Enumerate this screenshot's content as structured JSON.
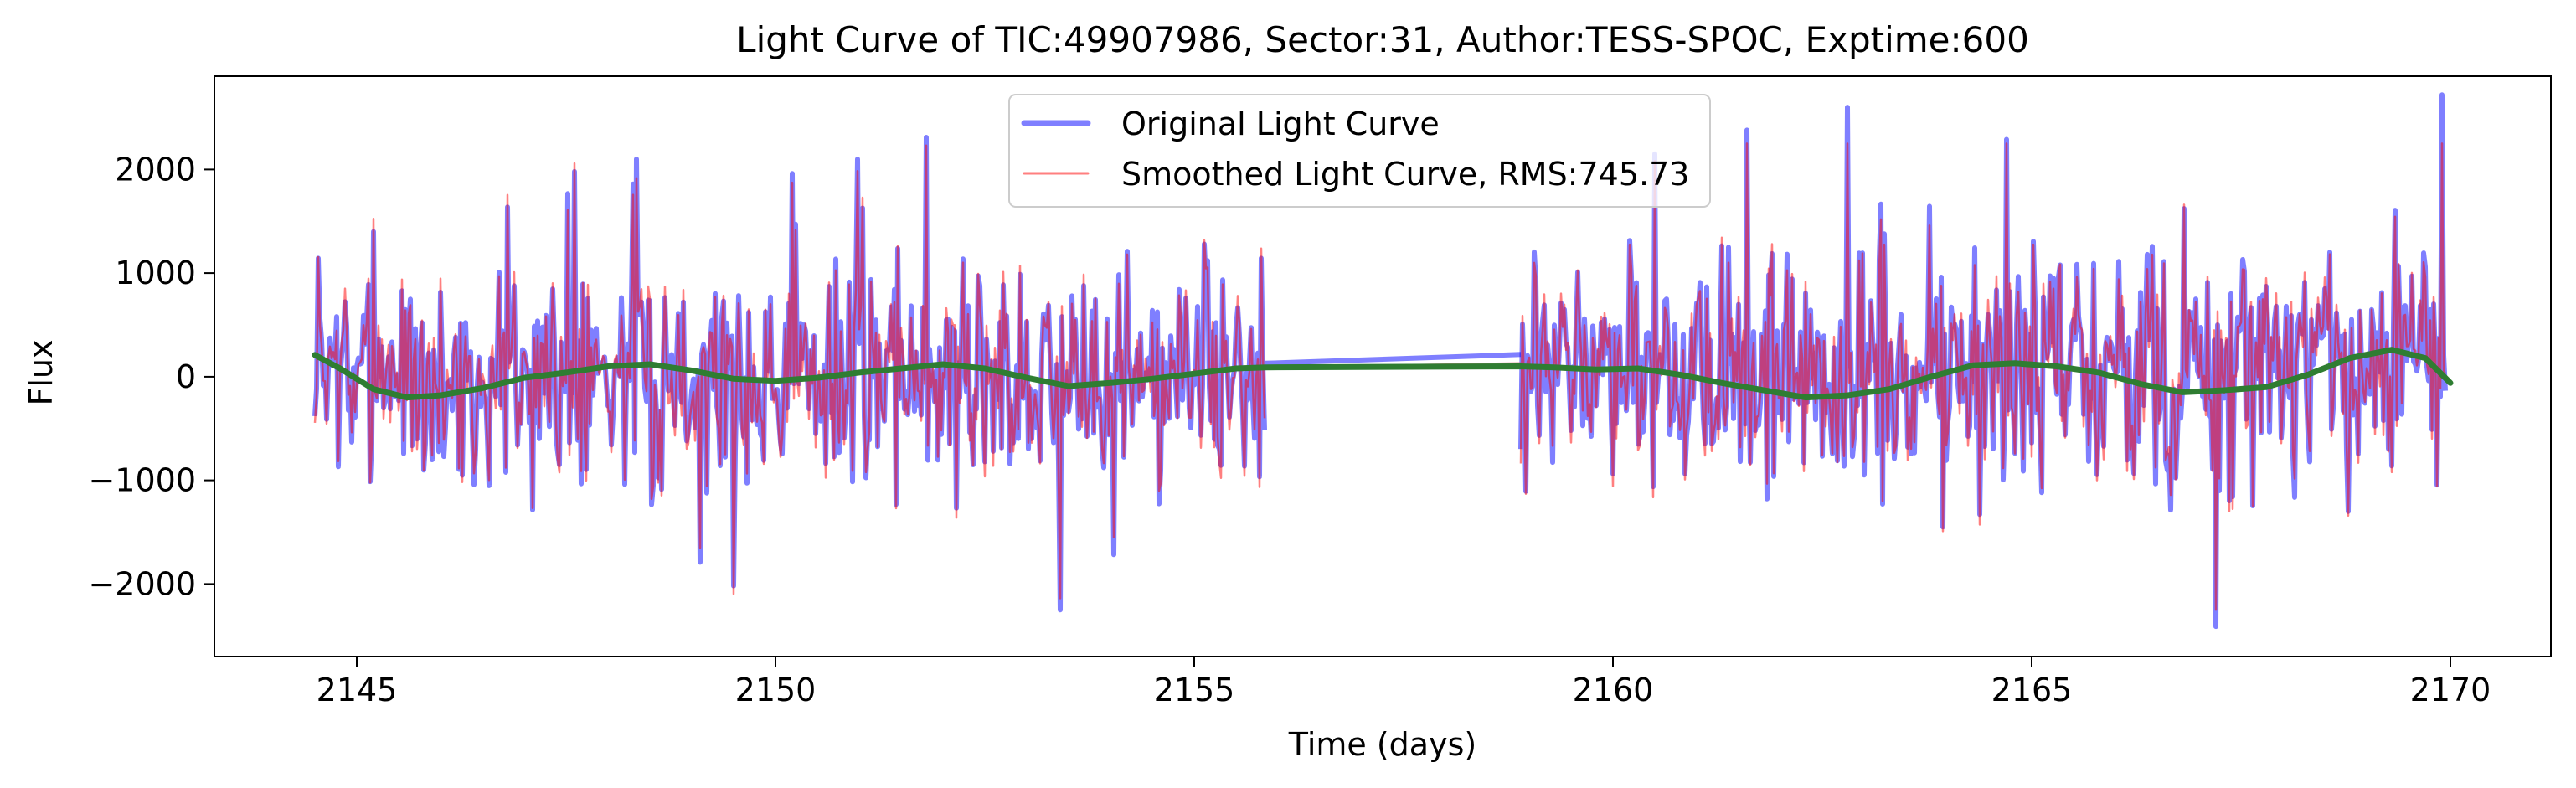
{
  "chart_data": {
    "type": "line",
    "title": "Light Curve of TIC:49907986, Sector:31, Author:TESS-SPOC, Exptime:600",
    "xlabel": "Time (days)",
    "ylabel": "Flux",
    "xlim": [
      2143.3,
      2171.2
    ],
    "ylim": [
      -2700,
      2900
    ],
    "xticks": [
      2145,
      2150,
      2155,
      2160,
      2165,
      2170
    ],
    "xtick_labels": [
      "2145",
      "2150",
      "2155",
      "2160",
      "2165",
      "2170"
    ],
    "yticks": [
      -2000,
      -1000,
      0,
      1000,
      2000
    ],
    "ytick_labels": [
      "−2000",
      "−1000",
      "0",
      "1000",
      "2000"
    ],
    "grid": false,
    "legend_position": "upper-center",
    "data_gap": [
      2155.85,
      2158.9
    ],
    "series": [
      {
        "name": "Original Light Curve",
        "role": "original",
        "color": "#0000ff",
        "alpha": 0.5,
        "style": "thick",
        "peaks": [
          {
            "x": 2145.2,
            "y": 1400
          },
          {
            "x": 2147.6,
            "y": 1980
          },
          {
            "x": 2148.3,
            "y": 1860
          },
          {
            "x": 2150.2,
            "y": 1960
          },
          {
            "x": 2151.8,
            "y": 2310
          },
          {
            "x": 2153.4,
            "y": -2250
          },
          {
            "x": 2160.5,
            "y": 2150
          },
          {
            "x": 2161.6,
            "y": 2380
          },
          {
            "x": 2162.8,
            "y": 2600
          },
          {
            "x": 2164.7,
            "y": 2290
          },
          {
            "x": 2167.2,
            "y": -2410
          },
          {
            "x": 2169.9,
            "y": 2720
          }
        ]
      },
      {
        "name": "Smoothed Light Curve, RMS:745.73",
        "role": "smoothed",
        "color": "#ff0000",
        "alpha": 0.5,
        "style": "thin"
      },
      {
        "name": "",
        "role": "trend",
        "color": "#2f7d32",
        "style": "thick",
        "x": [
          2144.5,
          2144.8,
          2145.2,
          2145.6,
          2146.0,
          2146.5,
          2147.0,
          2147.5,
          2148.0,
          2148.5,
          2149.0,
          2149.5,
          2150.0,
          2150.5,
          2151.0,
          2151.5,
          2152.0,
          2152.5,
          2153.0,
          2153.5,
          2154.0,
          2154.5,
          2155.0,
          2155.5,
          2155.85,
          2158.9,
          2159.3,
          2159.8,
          2160.3,
          2160.8,
          2161.3,
          2161.8,
          2162.3,
          2162.8,
          2163.3,
          2163.8,
          2164.3,
          2164.8,
          2165.3,
          2165.8,
          2166.3,
          2166.8,
          2167.3,
          2167.8,
          2168.3,
          2168.8,
          2169.3,
          2169.7,
          2170.0
        ],
        "y": [
          210,
          80,
          -120,
          -200,
          -180,
          -110,
          -10,
          40,
          100,
          120,
          60,
          -20,
          -40,
          -10,
          40,
          80,
          120,
          80,
          -10,
          -90,
          -60,
          -20,
          30,
          80,
          90,
          100,
          90,
          70,
          80,
          20,
          -60,
          -130,
          -200,
          -180,
          -120,
          0,
          110,
          130,
          100,
          40,
          -70,
          -150,
          -130,
          -100,
          20,
          180,
          260,
          180,
          -60
        ]
      }
    ]
  }
}
